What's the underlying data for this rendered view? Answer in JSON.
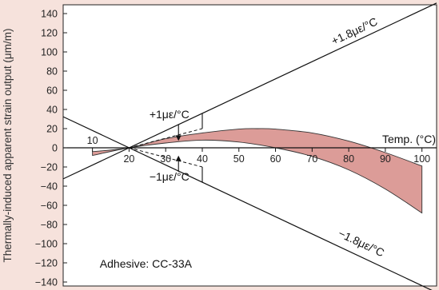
{
  "chart_data": {
    "type": "line",
    "ylabel": "Thermally-induced apparent strain output (μm/m)",
    "xlabel": "Temp. (°C)",
    "ylim": [
      -140,
      140
    ],
    "xlim": [
      2,
      104
    ],
    "y_ticks": [
      140,
      120,
      100,
      80,
      60,
      40,
      20,
      0,
      -20,
      -40,
      -60,
      -80,
      -100,
      -120,
      -140
    ],
    "x_ticks": [
      10,
      20,
      30,
      40,
      50,
      60,
      70,
      80,
      90,
      100
    ],
    "grid": false,
    "series": [
      {
        "name": "+1.8με/°C",
        "x": [
          0,
          104
        ],
        "y": [
          -36,
          151
        ]
      },
      {
        "name": "−1.8με/°C",
        "x": [
          0,
          104
        ],
        "y": [
          36,
          -151
        ]
      },
      {
        "name": "+1με/°C",
        "x": [
          20,
          40
        ],
        "y": [
          0,
          20
        ]
      },
      {
        "name": "−1με/°C",
        "x": [
          20,
          40
        ],
        "y": [
          0,
          -20
        ]
      }
    ],
    "band": {
      "upper": {
        "x": [
          10,
          20,
          30,
          40,
          50,
          55,
          60,
          70,
          80,
          90,
          100
        ],
        "y": [
          -4,
          0,
          9.5,
          15.5,
          19.5,
          20,
          19.5,
          15.5,
          7,
          -5,
          -19
        ]
      },
      "lower": {
        "x": [
          10,
          20,
          30,
          40,
          50,
          60,
          70,
          80,
          90,
          100
        ],
        "y": [
          -8,
          0,
          5,
          8,
          6,
          0,
          -9,
          -23,
          -43,
          -68
        ]
      },
      "fill": "#dc9c98"
    },
    "annotations": [
      {
        "text": "+1.8με/°C",
        "x": 82,
        "y": 118
      },
      {
        "text": "−1.8με/°C",
        "x": 83,
        "y": -103
      },
      {
        "text": "+1με/°C",
        "x": 31,
        "y": 31
      },
      {
        "text": "−1με/°C",
        "x": 31,
        "y": -34
      },
      {
        "text": "Adhesive: CC-33A",
        "x": 12,
        "y": -125
      }
    ]
  },
  "colors": {
    "background": "#f6e2dc",
    "plot_area": "#ffffff",
    "band_fill": "#dc9c98",
    "line": "#111111"
  }
}
